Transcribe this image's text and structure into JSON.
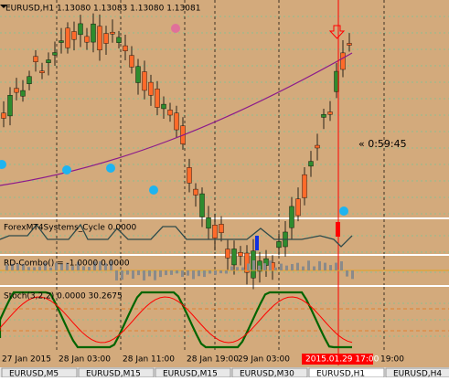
{
  "main_window": {
    "symbol_info": "EURUSD,H1  1.13080 1.13083 1.13080 1.13081",
    "countdown": "« 0:59:45"
  },
  "indicator_windows": [
    {
      "label": "ForexMT4Systems_Cycle 0.0000"
    },
    {
      "label": "RD-Combo() = -1.0000 0.0000"
    },
    {
      "label": "Stoch(3,2,2) 0.0000 30.2675"
    }
  ],
  "time_axis": [
    "27 Jan 2015",
    "28 Jan 03:00",
    "28 Jan 11:00",
    "28 Jan 19:00",
    "29 Jan 03:00",
    "2015.01.29 17:00",
    "19:00"
  ],
  "tabs": [
    "EURUSD,M5",
    "EURUSD,M15",
    "EURUSD,M15",
    "EURUSD,M30",
    "EURUSD,H1",
    "EURUSD,H4"
  ]
}
